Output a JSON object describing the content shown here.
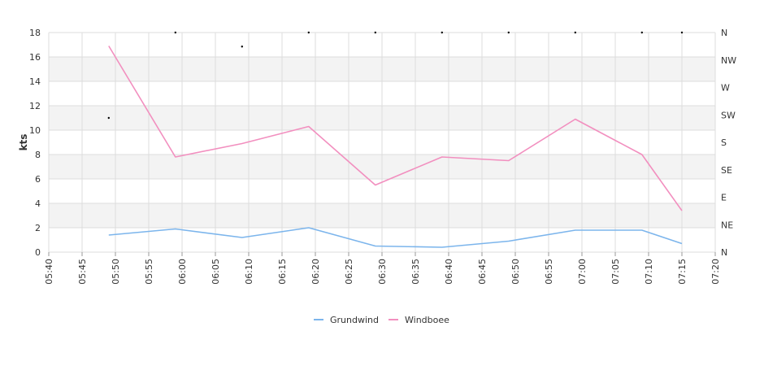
{
  "chart_data": {
    "type": "line",
    "title": "",
    "ylabel": "kts",
    "y_ticks": [
      "0",
      "2",
      "4",
      "6",
      "8",
      "10",
      "12",
      "14",
      "16",
      "18"
    ],
    "ylim": [
      0,
      18
    ],
    "x_ticks": [
      "05:40",
      "05:45",
      "05:50",
      "05:55",
      "06:00",
      "06:05",
      "06:10",
      "06:15",
      "06:20",
      "06:25",
      "06:30",
      "06:35",
      "06:40",
      "06:45",
      "06:50",
      "06:55",
      "07:00",
      "07:05",
      "07:10",
      "07:15",
      "07:20"
    ],
    "xlim": [
      "05:40",
      "07:20"
    ],
    "direction_ticks": [
      "N",
      "NE",
      "E",
      "SE",
      "S",
      "SW",
      "W",
      "NW",
      "N"
    ],
    "direction_range_deg": [
      0,
      360
    ],
    "grid": true,
    "legend_position": "bottom-center",
    "series": [
      {
        "name": "Grundwind",
        "color": "#7cb5ec",
        "points": [
          {
            "x": "05:49",
            "y": 1.4
          },
          {
            "x": "05:59",
            "y": 1.9
          },
          {
            "x": "06:09",
            "y": 1.2
          },
          {
            "x": "06:19",
            "y": 2.0
          },
          {
            "x": "06:29",
            "y": 0.5
          },
          {
            "x": "06:39",
            "y": 0.4
          },
          {
            "x": "06:49",
            "y": 0.9
          },
          {
            "x": "06:59",
            "y": 1.8
          },
          {
            "x": "07:09",
            "y": 1.8
          },
          {
            "x": "07:15",
            "y": 0.7
          }
        ]
      },
      {
        "name": "Windboee",
        "color": "#f28fbf",
        "points": [
          {
            "x": "05:49",
            "y": 16.9
          },
          {
            "x": "05:59",
            "y": 7.8
          },
          {
            "x": "06:09",
            "y": 8.9
          },
          {
            "x": "06:19",
            "y": 10.3
          },
          {
            "x": "06:29",
            "y": 5.5
          },
          {
            "x": "06:39",
            "y": 7.8
          },
          {
            "x": "06:49",
            "y": 7.5
          },
          {
            "x": "06:59",
            "y": 10.9
          },
          {
            "x": "07:09",
            "y": 8.0
          },
          {
            "x": "07:15",
            "y": 3.4
          }
        ]
      }
    ],
    "direction_points": [
      {
        "x": "05:49",
        "direction_deg": 220
      },
      {
        "x": "05:59",
        "direction_deg": 360
      },
      {
        "x": "06:09",
        "direction_deg": 337
      },
      {
        "x": "06:19",
        "direction_deg": 360
      },
      {
        "x": "06:29",
        "direction_deg": 360
      },
      {
        "x": "06:39",
        "direction_deg": 360
      },
      {
        "x": "06:49",
        "direction_deg": 360
      },
      {
        "x": "06:59",
        "direction_deg": 360
      },
      {
        "x": "07:09",
        "direction_deg": 360
      },
      {
        "x": "07:15",
        "direction_deg": 360
      }
    ],
    "colors": {
      "band": "#f3f3f3",
      "grid": "#dddddd",
      "axis_text": "#333333",
      "direction_marker": "#000000"
    }
  }
}
